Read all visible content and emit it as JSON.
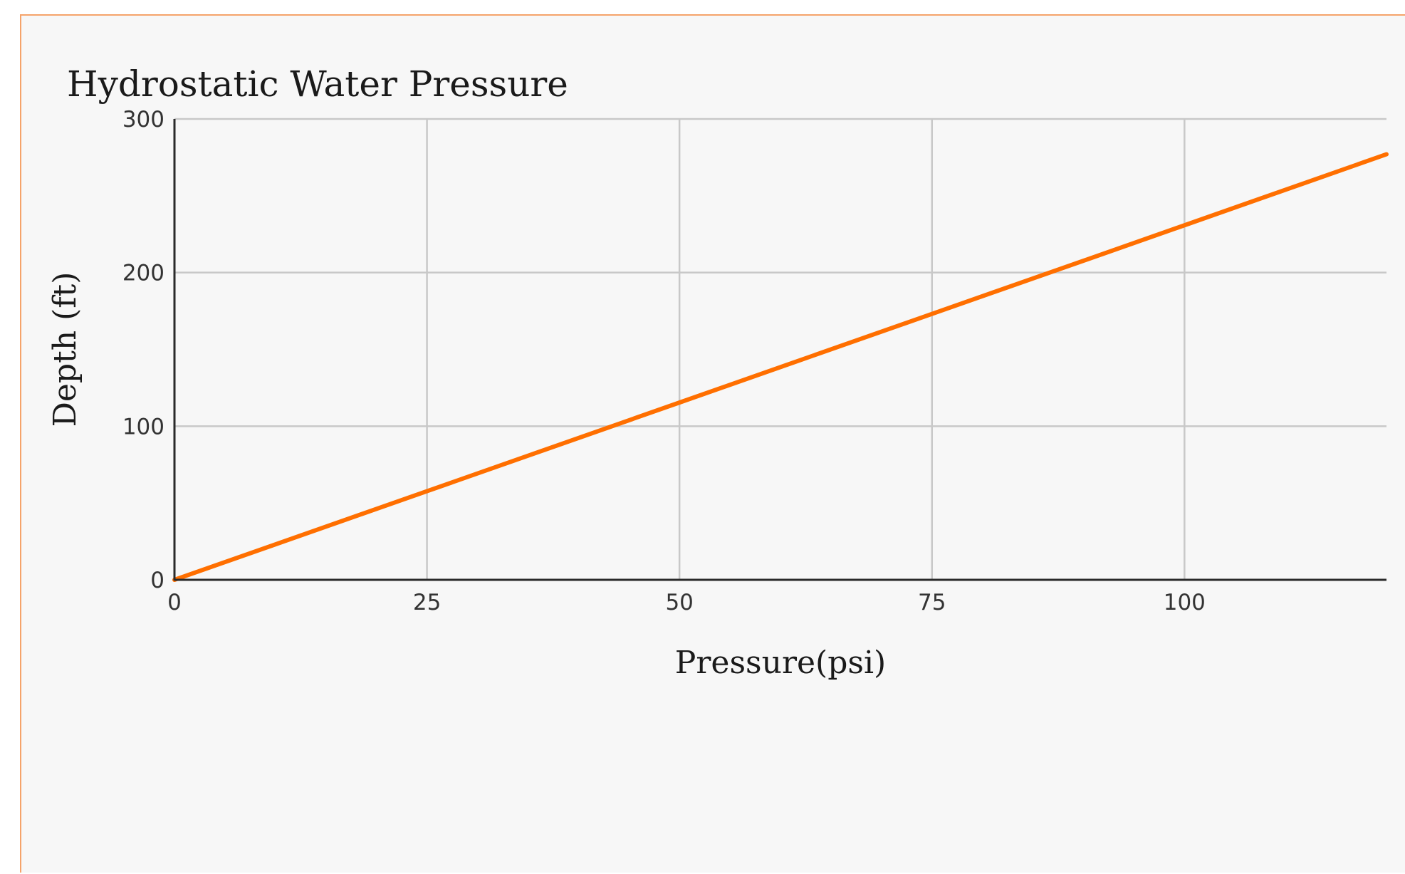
{
  "chart_data": {
    "type": "line",
    "title": "Hydrostatic Water Pressure",
    "xlabel": "Pressure(psi)",
    "ylabel": "Depth (ft)",
    "xlim": [
      0,
      120
    ],
    "ylim": [
      0,
      300
    ],
    "x_ticks": [
      0,
      25,
      50,
      75,
      100
    ],
    "y_ticks": [
      0,
      100,
      200,
      300
    ],
    "grid": true,
    "legend": "none",
    "series": [
      {
        "color": "#ff6f00",
        "x": [
          0,
          25,
          50,
          75,
          100,
          120
        ],
        "y": [
          0,
          57.7,
          115.4,
          173.1,
          230.8,
          277
        ]
      }
    ]
  }
}
